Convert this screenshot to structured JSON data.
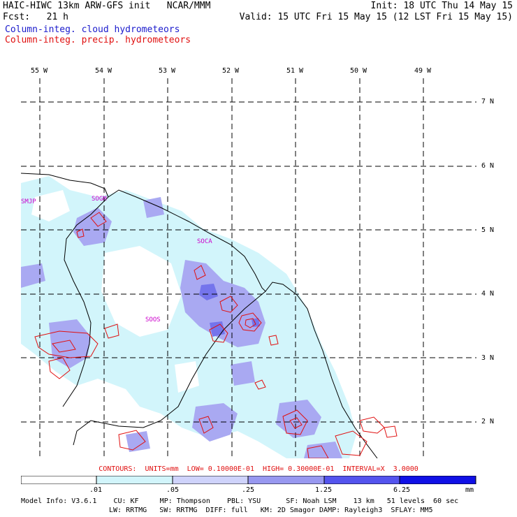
{
  "header": {
    "left_line1": "HAIC-HIWC 13km ARW-GFS init   NCAR/MMM",
    "left_line2": "Fcst:   21 h",
    "right_line1": "Init: 18 UTC Thu 14 May 15",
    "right_line2": "Valid: 15 UTC Fri 15 May 15 (12 LST Fri 15 May 15)",
    "field1": "Column-integ. cloud hydrometeors",
    "field2": "Column-integ. precip. hydrometeors"
  },
  "axes": {
    "lon_labels": [
      "55 W",
      "54 W",
      "53 W",
      "52 W",
      "51 W",
      "50 W",
      "49 W"
    ],
    "lat_labels": [
      "7 N",
      "6 N",
      "5 N",
      "4 N",
      "3 N",
      "2 N"
    ]
  },
  "stations": [
    "SMJP",
    "SOGM",
    "SOCA",
    "SOOS"
  ],
  "contours_text": "CONTOURS:  UNITS=mm  LOW= 0.10000E-01  HIGH= 0.30000E-01  INTERVAL=X  3.0000",
  "colorbar": {
    "labels": [
      ".01",
      ".05",
      ".25",
      "1.25",
      "6.25"
    ],
    "unit": "mm",
    "colors": [
      "#ffffff",
      "#d2f5fb",
      "#cfd3fb",
      "#9898f0",
      "#5454ee",
      "#1010e6"
    ]
  },
  "model_info": {
    "line1": "Model Info: V3.6.1    CU: KF     MP: Thompson    PBL: YSU      SF: Noah LSM    13 km   51 levels  60 sec",
    "line2": "LW: RRTMG   SW: RRTMG  DIFF: full   KM: 2D Smagor DAMP: Rayleigh3  SFLAY: MM5"
  }
}
